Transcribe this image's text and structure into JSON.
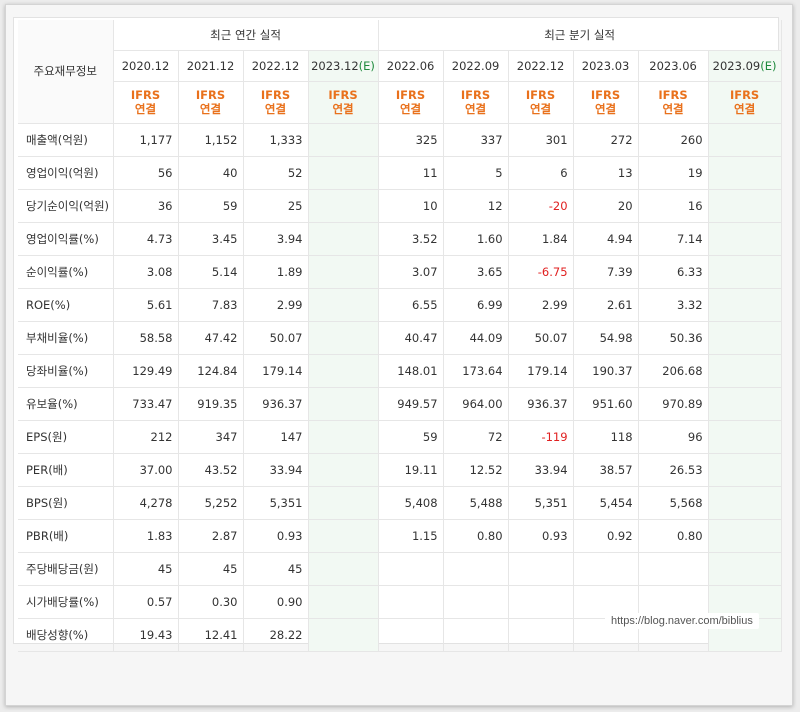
{
  "header": {
    "corner_label": "주요재무정보",
    "annual_title": "최근 연간 실적",
    "quarter_title": "최근 분기 실적",
    "annual_periods": [
      {
        "date": "2020.12",
        "est": ""
      },
      {
        "date": "2021.12",
        "est": ""
      },
      {
        "date": "2022.12",
        "est": ""
      },
      {
        "date": "2023.12",
        "est": "(E)"
      }
    ],
    "quarter_periods": [
      {
        "date": "2022.06",
        "est": ""
      },
      {
        "date": "2022.09",
        "est": ""
      },
      {
        "date": "2022.12",
        "est": ""
      },
      {
        "date": "2023.03",
        "est": ""
      },
      {
        "date": "2023.06",
        "est": ""
      },
      {
        "date": "2023.09",
        "est": "(E)"
      }
    ],
    "basis_line1": "IFRS",
    "basis_line2": "연결"
  },
  "rows": [
    {
      "label": "매출액(억원)",
      "group_start": true,
      "values": [
        "1,177",
        "1,152",
        "1,333",
        "",
        "325",
        "337",
        "301",
        "272",
        "260",
        ""
      ]
    },
    {
      "label": "영업이익(억원)",
      "values": [
        "56",
        "40",
        "52",
        "",
        "11",
        "5",
        "6",
        "13",
        "19",
        ""
      ]
    },
    {
      "label": "당기순이익(억원)",
      "values": [
        "36",
        "59",
        "25",
        "",
        "10",
        "12",
        "-20",
        "20",
        "16",
        ""
      ]
    },
    {
      "label": "영업이익률(%)",
      "group_start": true,
      "values": [
        "4.73",
        "3.45",
        "3.94",
        "",
        "3.52",
        "1.60",
        "1.84",
        "4.94",
        "7.14",
        ""
      ]
    },
    {
      "label": "순이익률(%)",
      "values": [
        "3.08",
        "5.14",
        "1.89",
        "",
        "3.07",
        "3.65",
        "-6.75",
        "7.39",
        "6.33",
        ""
      ]
    },
    {
      "label": "ROE(%)",
      "values": [
        "5.61",
        "7.83",
        "2.99",
        "",
        "6.55",
        "6.99",
        "2.99",
        "2.61",
        "3.32",
        ""
      ]
    },
    {
      "label": "부채비율(%)",
      "group_start": true,
      "values": [
        "58.58",
        "47.42",
        "50.07",
        "",
        "40.47",
        "44.09",
        "50.07",
        "54.98",
        "50.36",
        ""
      ]
    },
    {
      "label": "당좌비율(%)",
      "values": [
        "129.49",
        "124.84",
        "179.14",
        "",
        "148.01",
        "173.64",
        "179.14",
        "190.37",
        "206.68",
        ""
      ]
    },
    {
      "label": "유보율(%)",
      "values": [
        "733.47",
        "919.35",
        "936.37",
        "",
        "949.57",
        "964.00",
        "936.37",
        "951.60",
        "970.89",
        ""
      ]
    },
    {
      "label": "EPS(원)",
      "group_start": true,
      "values": [
        "212",
        "347",
        "147",
        "",
        "59",
        "72",
        "-119",
        "118",
        "96",
        ""
      ]
    },
    {
      "label": "PER(배)",
      "values": [
        "37.00",
        "43.52",
        "33.94",
        "",
        "19.11",
        "12.52",
        "33.94",
        "38.57",
        "26.53",
        ""
      ]
    },
    {
      "label": "BPS(원)",
      "values": [
        "4,278",
        "5,252",
        "5,351",
        "",
        "5,408",
        "5,488",
        "5,351",
        "5,454",
        "5,568",
        ""
      ]
    },
    {
      "label": "PBR(배)",
      "values": [
        "1.83",
        "2.87",
        "0.93",
        "",
        "1.15",
        "0.80",
        "0.93",
        "0.92",
        "0.80",
        ""
      ]
    },
    {
      "label": "주당배당금(원)",
      "group_start": true,
      "values": [
        "45",
        "45",
        "45",
        "",
        "",
        "",
        "",
        "",
        "",
        ""
      ]
    },
    {
      "label": "시가배당률(%)",
      "values": [
        "0.57",
        "0.30",
        "0.90",
        "",
        "",
        "",
        "",
        "",
        "",
        ""
      ]
    },
    {
      "label": "배당성향(%)",
      "values": [
        "19.43",
        "12.41",
        "28.22",
        "",
        "",
        "",
        "",
        "",
        "",
        ""
      ]
    }
  ],
  "colors": {
    "estimate_bg": "#f2f9f3",
    "ifrs_orange": "#e9711c",
    "negative": "#e02020",
    "estimate_tag": "#1e8a3c"
  },
  "watermark": "https://blog.naver.com/biblius"
}
